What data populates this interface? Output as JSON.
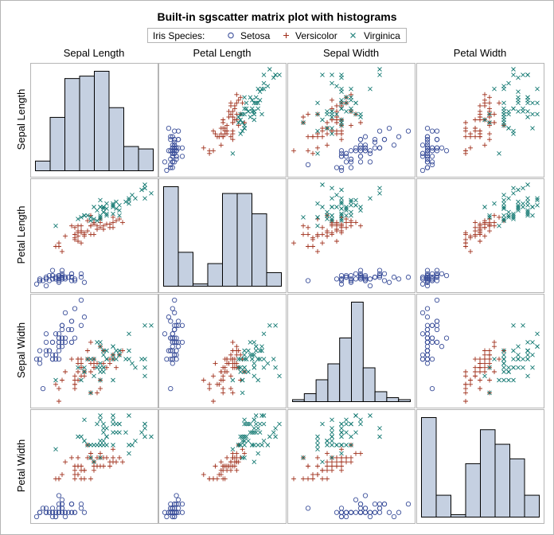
{
  "chart_data": {
    "type": "scatter-matrix",
    "title": "Built-in sgscatter matrix plot with histograms",
    "variables": [
      "Sepal Length",
      "Petal Length",
      "Sepal Width",
      "Petal Width"
    ],
    "legend": {
      "title": "Iris Species:",
      "position": "top",
      "entries": [
        {
          "name": "Setosa",
          "marker": "circle",
          "color": "#3b4f9a"
        },
        {
          "name": "Versicolor",
          "marker": "plus",
          "color": "#a0301c"
        },
        {
          "name": "Virginica",
          "marker": "x",
          "color": "#157a73"
        }
      ]
    },
    "ranges": {
      "Sepal Length": [
        43,
        79
      ],
      "Petal Length": [
        10,
        69
      ],
      "Sepal Width": [
        20,
        44
      ],
      "Petal Width": [
        1,
        25
      ]
    },
    "histograms": {
      "Sepal Length": {
        "bin_start": 41,
        "bin_width": 4,
        "counts": [
          4,
          22,
          38,
          39,
          41,
          26,
          10,
          9
        ]
      },
      "Petal Length": {
        "bin_start": 10,
        "bin_width": 6,
        "counts": [
          44,
          15,
          1,
          10,
          41,
          41,
          32,
          6
        ]
      },
      "Sepal Width": {
        "bin_start": 20,
        "bin_width": 2,
        "counts": [
          1,
          4,
          11,
          19,
          32,
          50,
          17,
          5,
          2,
          1
        ]
      },
      "Petal Width": {
        "bin_start": 0,
        "bin_width": 3,
        "counts": [
          41,
          9,
          1,
          22,
          36,
          30,
          24,
          9
        ]
      }
    },
    "series": [
      {
        "name": "Setosa",
        "sepal_length": [
          51,
          49,
          47,
          46,
          50,
          54,
          46,
          50,
          44,
          49,
          54,
          48,
          48,
          43,
          58,
          57,
          54,
          51,
          57,
          51,
          54,
          51,
          46,
          51,
          48,
          50,
          50,
          52,
          52,
          47,
          48,
          54,
          52,
          55,
          49,
          50,
          55,
          49,
          44,
          51,
          50,
          45,
          44,
          50,
          51,
          48,
          51,
          46,
          53,
          50
        ],
        "sepal_width": [
          35,
          30,
          32,
          31,
          36,
          39,
          34,
          34,
          29,
          31,
          37,
          34,
          30,
          30,
          40,
          44,
          39,
          35,
          38,
          38,
          34,
          37,
          36,
          33,
          34,
          30,
          34,
          35,
          34,
          32,
          31,
          34,
          41,
          42,
          31,
          32,
          35,
          36,
          30,
          34,
          35,
          23,
          32,
          35,
          38,
          30,
          38,
          32,
          37,
          33
        ],
        "petal_length": [
          14,
          14,
          13,
          15,
          14,
          17,
          14,
          15,
          14,
          15,
          15,
          16,
          14,
          11,
          12,
          15,
          13,
          14,
          17,
          15,
          17,
          15,
          10,
          17,
          19,
          16,
          16,
          15,
          14,
          16,
          16,
          15,
          15,
          14,
          15,
          12,
          13,
          14,
          13,
          15,
          13,
          13,
          13,
          16,
          19,
          14,
          16,
          14,
          15,
          14
        ],
        "petal_width": [
          2,
          2,
          2,
          2,
          2,
          4,
          3,
          2,
          2,
          1,
          2,
          2,
          1,
          1,
          2,
          4,
          4,
          3,
          3,
          3,
          2,
          4,
          2,
          5,
          2,
          2,
          4,
          2,
          2,
          2,
          2,
          4,
          1,
          2,
          2,
          2,
          2,
          1,
          2,
          2,
          3,
          3,
          2,
          6,
          4,
          3,
          2,
          2,
          2,
          2
        ]
      },
      {
        "name": "Versicolor",
        "sepal_length": [
          70,
          64,
          69,
          55,
          65,
          57,
          63,
          49,
          66,
          52,
          50,
          59,
          60,
          61,
          56,
          67,
          56,
          58,
          62,
          56,
          59,
          61,
          63,
          61,
          64,
          66,
          68,
          67,
          60,
          57,
          55,
          55,
          58,
          60,
          54,
          60,
          67,
          63,
          56,
          55,
          55,
          61,
          58,
          50,
          56,
          57,
          57,
          62,
          51,
          57
        ],
        "sepal_width": [
          32,
          32,
          31,
          23,
          28,
          28,
          33,
          24,
          29,
          27,
          20,
          30,
          22,
          29,
          29,
          31,
          30,
          27,
          22,
          25,
          32,
          28,
          25,
          28,
          29,
          30,
          28,
          30,
          29,
          26,
          24,
          24,
          27,
          27,
          30,
          34,
          31,
          23,
          30,
          25,
          26,
          30,
          26,
          23,
          27,
          30,
          29,
          29,
          25,
          28
        ],
        "petal_length": [
          47,
          45,
          49,
          40,
          46,
          45,
          47,
          33,
          46,
          39,
          35,
          42,
          40,
          47,
          36,
          44,
          45,
          41,
          45,
          39,
          48,
          40,
          49,
          47,
          43,
          44,
          48,
          50,
          45,
          35,
          38,
          37,
          39,
          51,
          45,
          45,
          47,
          44,
          41,
          40,
          44,
          46,
          40,
          33,
          42,
          42,
          42,
          43,
          30,
          41
        ],
        "petal_width": [
          14,
          15,
          15,
          13,
          15,
          13,
          16,
          10,
          13,
          14,
          10,
          15,
          10,
          14,
          13,
          14,
          15,
          10,
          15,
          11,
          18,
          13,
          15,
          12,
          13,
          14,
          14,
          17,
          15,
          10,
          11,
          10,
          12,
          16,
          15,
          16,
          15,
          13,
          13,
          13,
          12,
          14,
          12,
          10,
          13,
          12,
          13,
          13,
          11,
          13
        ]
      },
      {
        "name": "Virginica",
        "sepal_length": [
          63,
          58,
          71,
          63,
          65,
          76,
          49,
          73,
          67,
          72,
          65,
          64,
          68,
          57,
          58,
          64,
          65,
          77,
          77,
          60,
          69,
          56,
          77,
          63,
          67,
          72,
          62,
          61,
          64,
          72,
          74,
          79,
          64,
          63,
          61,
          77,
          63,
          64,
          60,
          69,
          67,
          69,
          58,
          68,
          67,
          67,
          63,
          65,
          62,
          59
        ],
        "sepal_width": [
          33,
          27,
          30,
          29,
          30,
          30,
          25,
          29,
          25,
          36,
          32,
          27,
          30,
          25,
          28,
          32,
          30,
          38,
          26,
          22,
          32,
          28,
          28,
          27,
          33,
          32,
          28,
          30,
          28,
          30,
          28,
          38,
          28,
          28,
          26,
          30,
          34,
          31,
          30,
          31,
          31,
          31,
          27,
          32,
          33,
          30,
          25,
          30,
          34,
          30
        ],
        "petal_length": [
          60,
          51,
          59,
          56,
          58,
          66,
          45,
          63,
          58,
          61,
          51,
          53,
          55,
          50,
          51,
          53,
          55,
          67,
          69,
          50,
          57,
          49,
          67,
          49,
          57,
          60,
          48,
          49,
          56,
          58,
          61,
          64,
          56,
          51,
          56,
          61,
          56,
          55,
          48,
          54,
          56,
          51,
          51,
          59,
          57,
          52,
          50,
          52,
          54,
          51
        ],
        "petal_width": [
          25,
          19,
          21,
          18,
          22,
          21,
          17,
          18,
          18,
          25,
          20,
          19,
          21,
          20,
          24,
          23,
          18,
          22,
          23,
          15,
          23,
          20,
          20,
          18,
          21,
          18,
          18,
          18,
          21,
          16,
          19,
          20,
          22,
          15,
          14,
          23,
          24,
          18,
          18,
          21,
          24,
          23,
          19,
          23,
          25,
          23,
          19,
          20,
          23,
          18
        ]
      }
    ]
  }
}
